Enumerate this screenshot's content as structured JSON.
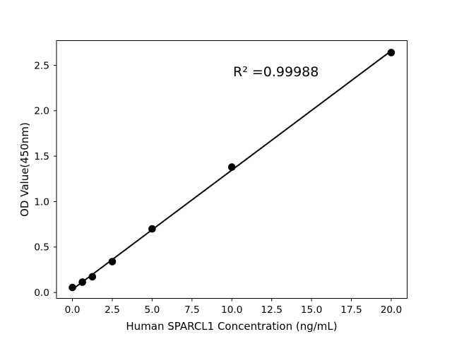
{
  "chart_data": {
    "type": "scatter",
    "title": "",
    "xlabel": "Human SPARCL1 Concentration (ng/mL)",
    "ylabel": "OD Value(450nm)",
    "annotation": "R² =0.99988",
    "r_squared": 0.99988,
    "x": [
      0,
      0.625,
      1.25,
      2.5,
      5,
      10,
      20
    ],
    "y": [
      0.055,
      0.114,
      0.173,
      0.34,
      0.7,
      1.38,
      2.64
    ],
    "fit_line": {
      "slope": 0.1313,
      "intercept": 0.034,
      "x_start": 0,
      "x_end": 20
    },
    "xlim": [
      -1,
      21
    ],
    "ylim": [
      -0.065,
      2.772
    ],
    "xticks": {
      "values": [
        0,
        2.5,
        5,
        7.5,
        10,
        12.5,
        15,
        17.5,
        20
      ],
      "labels": [
        "0.0",
        "2.5",
        "5.0",
        "7.5",
        "10.0",
        "12.5",
        "15.0",
        "17.5",
        "20.0"
      ]
    },
    "yticks": {
      "values": [
        0,
        0.5,
        1.0,
        1.5,
        2.0,
        2.5
      ],
      "labels": [
        "0.0",
        "0.5",
        "1.0",
        "1.5",
        "2.0",
        "2.5"
      ]
    },
    "grid": false,
    "legend": "none",
    "marker_color": "#000000",
    "line_color": "#000000",
    "frame_color": "#000000",
    "text_color": "#000000",
    "background": "#ffffff"
  }
}
